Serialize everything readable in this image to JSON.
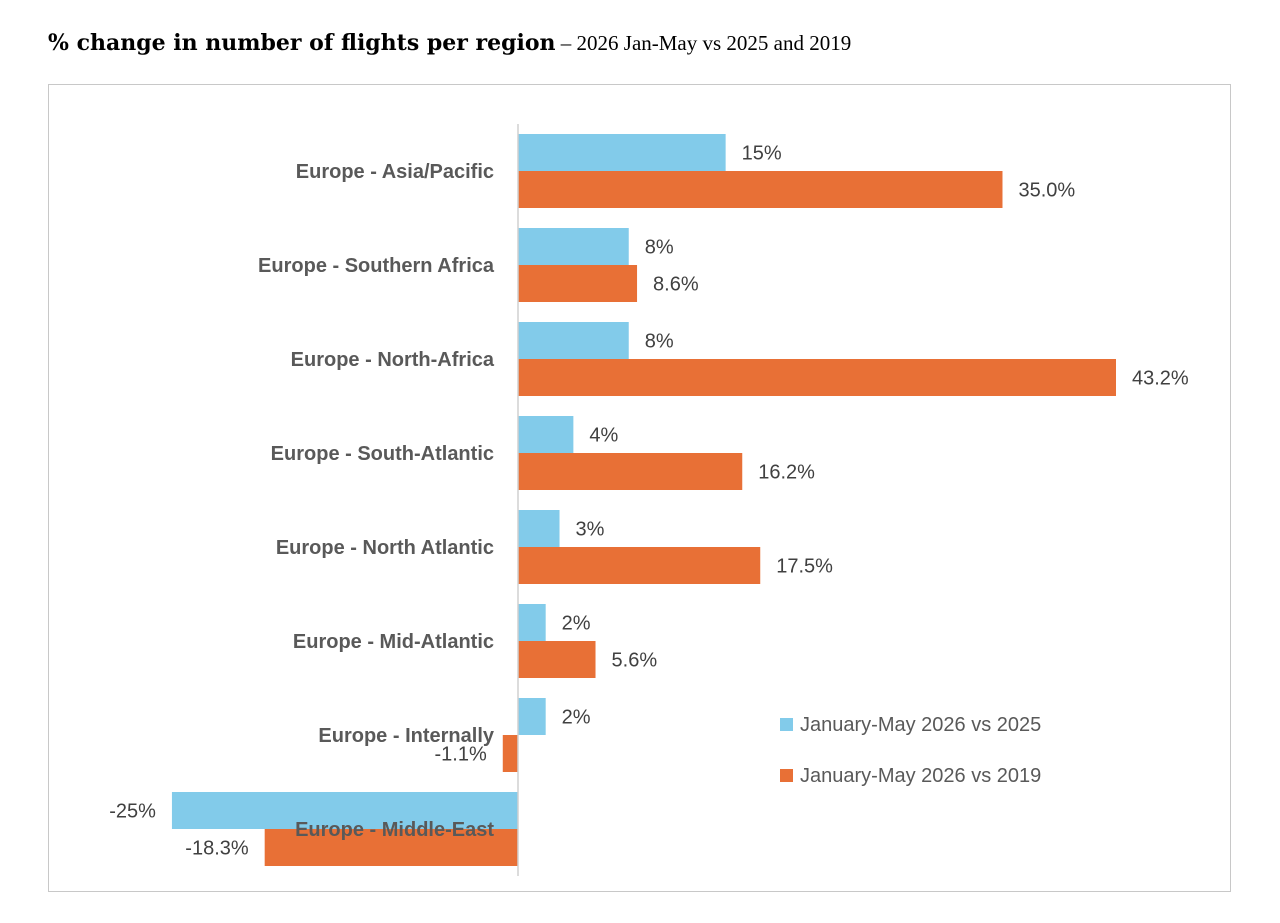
{
  "title": {
    "main": "% change in number of flights per region",
    "sub": " – 2026 Jan-May vs 2025 and 2019"
  },
  "colors": {
    "series_2025": "#82CBEA",
    "series_2019": "#E87036"
  },
  "chart_data": {
    "type": "bar",
    "orientation": "horizontal",
    "categories": [
      "Europe - Asia/Pacific",
      "Europe - Southern Africa",
      "Europe - North-Africa",
      "Europe - South-Atlantic",
      "Europe - North Atlantic",
      "Europe - Mid-Atlantic",
      "Europe - Internally",
      "Europe - Middle-East"
    ],
    "series": [
      {
        "name": "January-May 2026 vs 2025",
        "values": [
          15,
          8,
          8,
          4,
          3,
          2,
          2,
          -25
        ],
        "labels": [
          "15%",
          "8%",
          "8%",
          "4%",
          "3%",
          "2%",
          "2%",
          "-25%"
        ]
      },
      {
        "name": "January-May 2026 vs 2019",
        "values": [
          35.0,
          8.6,
          43.2,
          16.2,
          17.5,
          5.6,
          -1.1,
          -18.3
        ],
        "labels": [
          "35.0%",
          "8.6%",
          "43.2%",
          "16.2%",
          "17.5%",
          "5.6%",
          "-1.1%",
          "-18.3%"
        ]
      }
    ],
    "xlim": [
      -25,
      43.2
    ],
    "grid": false,
    "legend_position": "bottom-right"
  }
}
